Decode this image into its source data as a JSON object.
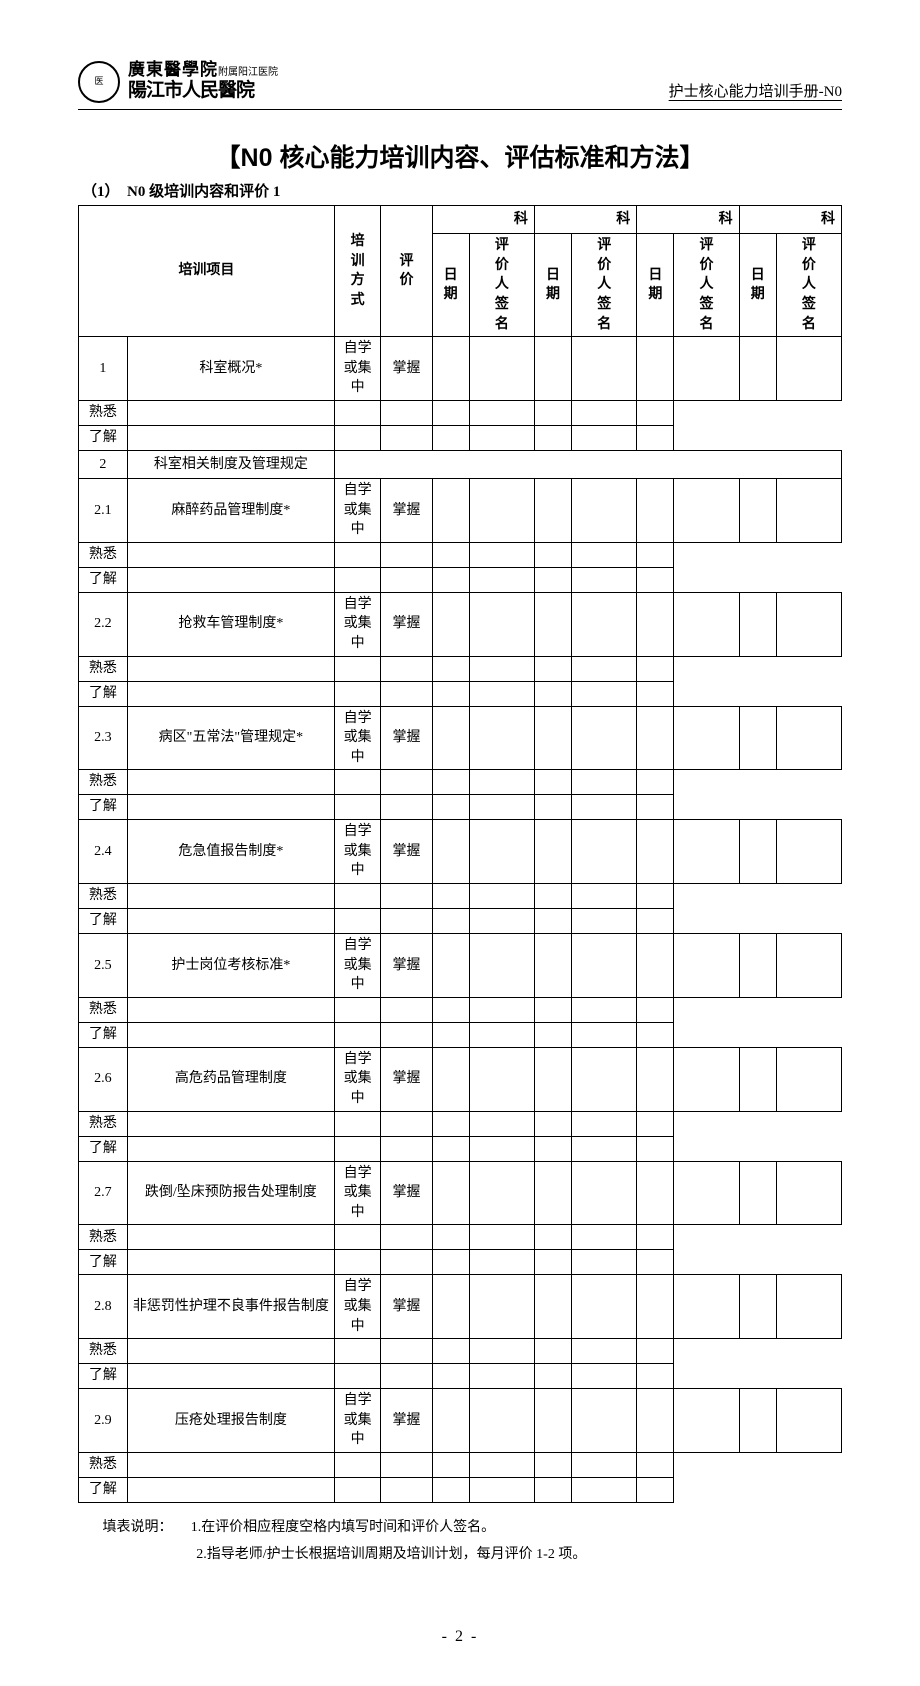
{
  "header": {
    "logo_line1_main": "廣東醫學院",
    "logo_line1_suffix": "附属阳江医院",
    "logo_line2": "陽江市人民醫院",
    "right_text": "护士核心能力培训手册-N0"
  },
  "title": "【N0 核心能力培训内容、评估标准和方法】",
  "subtitle": "（1）　N0 级培训内容和评价 1",
  "table": {
    "col_item": "培训项目",
    "col_method": "培训方式",
    "col_eval": "评价",
    "dept_label": "科",
    "date_label": "日期",
    "signer_label": "评价人签名",
    "method_text": "自学或集中",
    "eval_levels": [
      "掌握",
      "熟悉",
      "了解"
    ],
    "rows": [
      {
        "no": "1",
        "name": "科室概况*",
        "header": false
      },
      {
        "no": "2",
        "name": "科室相关制度及管理规定",
        "header": true
      },
      {
        "no": "2.1",
        "name": "麻醉药品管理制度*",
        "header": false
      },
      {
        "no": "2.2",
        "name": "抢救车管理制度*",
        "header": false
      },
      {
        "no": "2.3",
        "name": "病区\"五常法\"管理规定*",
        "header": false
      },
      {
        "no": "2.4",
        "name": "危急值报告制度*",
        "header": false
      },
      {
        "no": "2.5",
        "name": "护士岗位考核标准*",
        "header": false
      },
      {
        "no": "2.6",
        "name": "高危药品管理制度",
        "header": false
      },
      {
        "no": "2.7",
        "name": "跌倒/坠床预防报告处理制度",
        "header": false
      },
      {
        "no": "2.8",
        "name": "非惩罚性护理不良事件报告制度",
        "header": false
      },
      {
        "no": "2.9",
        "name": "压疮处理报告制度",
        "header": false
      }
    ]
  },
  "footer": {
    "label": "填表说明：",
    "note1": "1.在评价相应程度空格内填写时间和评价人签名。",
    "note2": "2.指导老师/护士长根据培训周期及培训计划，每月评价 1-2 项。"
  },
  "page_number": "- 2 -"
}
